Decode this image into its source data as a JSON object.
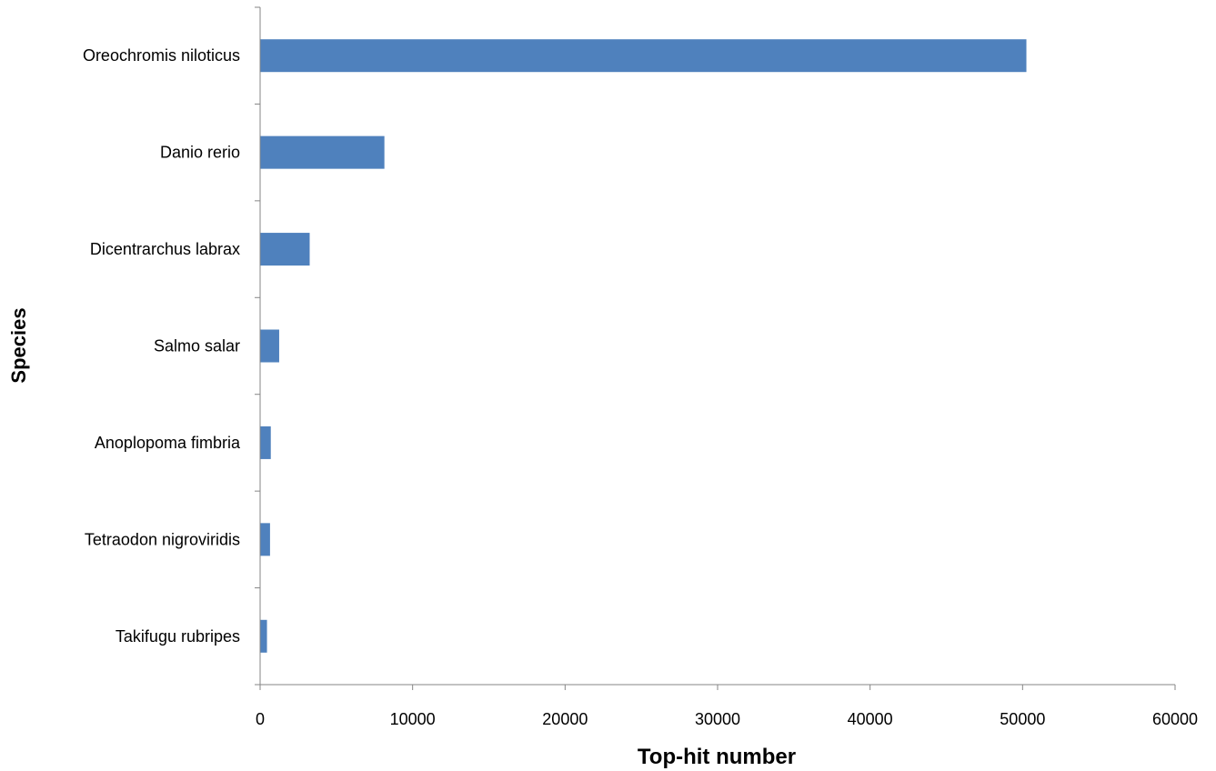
{
  "chart_data": {
    "type": "bar",
    "orientation": "horizontal",
    "title": "",
    "xlabel": "Top-hit number",
    "ylabel": "Species",
    "categories": [
      "Oreochromis niloticus",
      "Danio rerio",
      "Dicentrarchus labrax",
      "Salmo salar",
      "Anoplopoma fimbria",
      "Tetraodon nigroviridis",
      "Takifugu rubripes"
    ],
    "values": [
      50250,
      8150,
      3250,
      1250,
      700,
      650,
      450
    ],
    "xlim": [
      0,
      60000
    ],
    "xticks": [
      "0",
      "10000",
      "20000",
      "30000",
      "40000",
      "50000",
      "60000"
    ],
    "grid": false,
    "legend": "none",
    "bar_color": "#4f81bd",
    "axis_color": "#868686"
  }
}
